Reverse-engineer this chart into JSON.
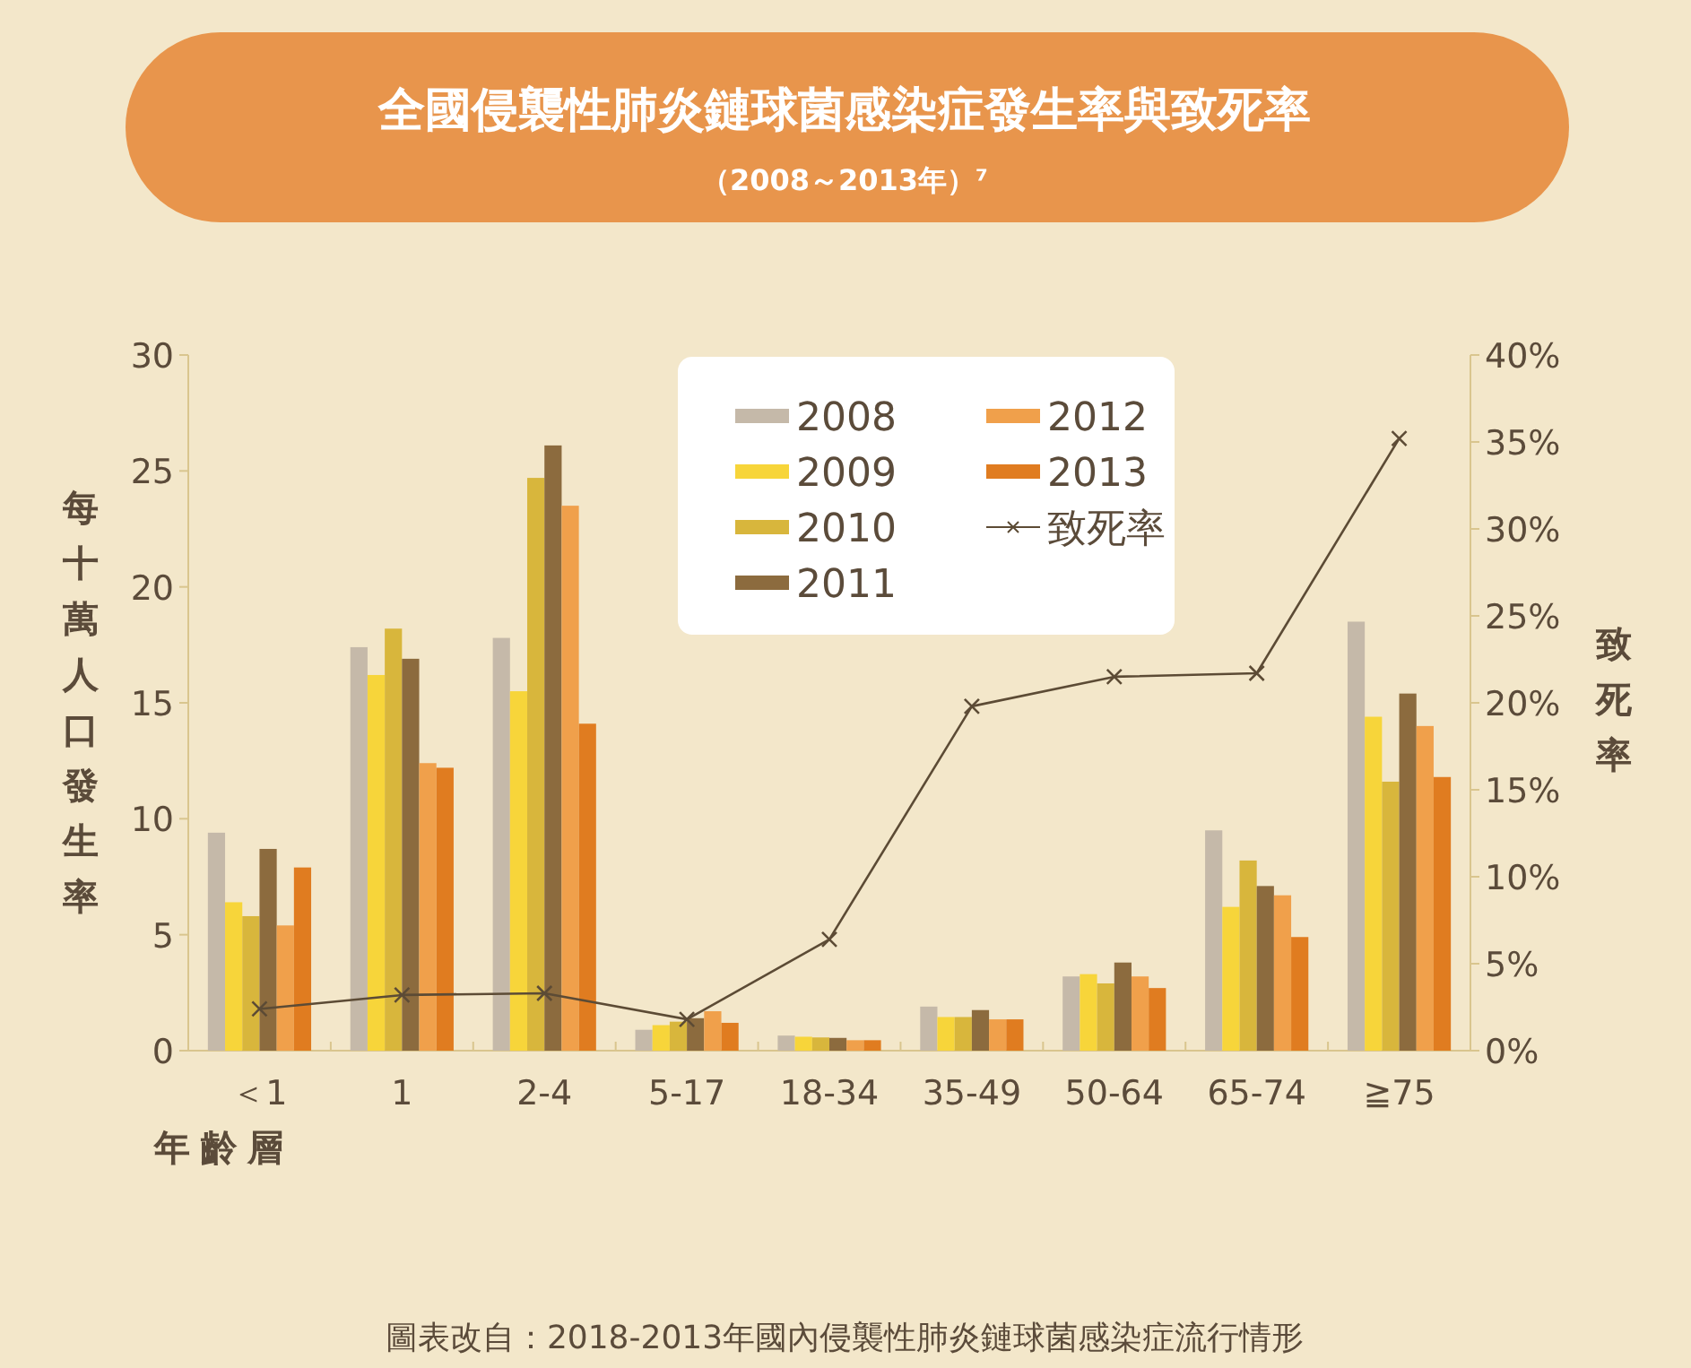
{
  "chart_data": {
    "type": "bar",
    "title": "全國侵襲性肺炎鏈球菌感染症發生率與致死率",
    "subtitle": "（2008～2013年）⁷",
    "xlabel": "年齡層",
    "ylabel": "每十萬人口發生率",
    "y2label": "致死率",
    "annotations": [
      "圖表改自：2018-2013年國內侵襲性肺炎鏈球菌感染症流行情形"
    ],
    "categories": [
      "＜1",
      "1",
      "2-4",
      "5-17",
      "18-34",
      "35-49",
      "50-64",
      "65-74",
      "≧75"
    ],
    "series": [
      {
        "name": "2008",
        "color": "#c5b9a9",
        "values": [
          9.4,
          17.4,
          17.8,
          0.9,
          0.65,
          1.9,
          3.2,
          9.5,
          18.5
        ]
      },
      {
        "name": "2009",
        "color": "#f7d53a",
        "values": [
          6.4,
          16.2,
          15.5,
          1.1,
          0.6,
          1.45,
          3.3,
          6.2,
          14.4
        ]
      },
      {
        "name": "2010",
        "color": "#d8b63c",
        "values": [
          5.8,
          18.2,
          24.7,
          1.25,
          0.57,
          1.45,
          2.9,
          8.2,
          11.6
        ]
      },
      {
        "name": "2011",
        "color": "#8c6b3e",
        "values": [
          8.7,
          16.9,
          26.1,
          1.4,
          0.55,
          1.75,
          3.8,
          7.1,
          15.4
        ]
      },
      {
        "name": "2012",
        "color": "#f0a04b",
        "values": [
          5.4,
          12.4,
          23.5,
          1.7,
          0.45,
          1.35,
          3.2,
          6.7,
          14.0
        ]
      },
      {
        "name": "2013",
        "color": "#e07c20",
        "values": [
          7.9,
          12.2,
          14.1,
          1.2,
          0.45,
          1.35,
          2.7,
          4.9,
          11.8
        ]
      },
      {
        "name": "致死率",
        "type": "line",
        "axis": "y2",
        "marker": "cross",
        "color": "#5c4b35",
        "values": [
          2.4,
          3.2,
          3.3,
          1.8,
          6.4,
          19.8,
          21.5,
          21.7,
          35.2
        ]
      }
    ],
    "ylim": [
      0,
      30
    ],
    "yticks": [
      0,
      5,
      10,
      15,
      20,
      25,
      30
    ],
    "y2lim": [
      0,
      40
    ],
    "y2ticks": [
      {
        "value": 0,
        "label": "0%"
      },
      {
        "value": 5,
        "label": "5%"
      },
      {
        "value": 10,
        "label": "10%"
      },
      {
        "value": 15,
        "label": "15%"
      },
      {
        "value": 20,
        "label": "20%"
      },
      {
        "value": 25,
        "label": "25%"
      },
      {
        "value": 30,
        "label": "30%"
      },
      {
        "value": 35,
        "label": "35%"
      },
      {
        "value": 40,
        "label": "40%"
      }
    ],
    "legend": "top"
  }
}
